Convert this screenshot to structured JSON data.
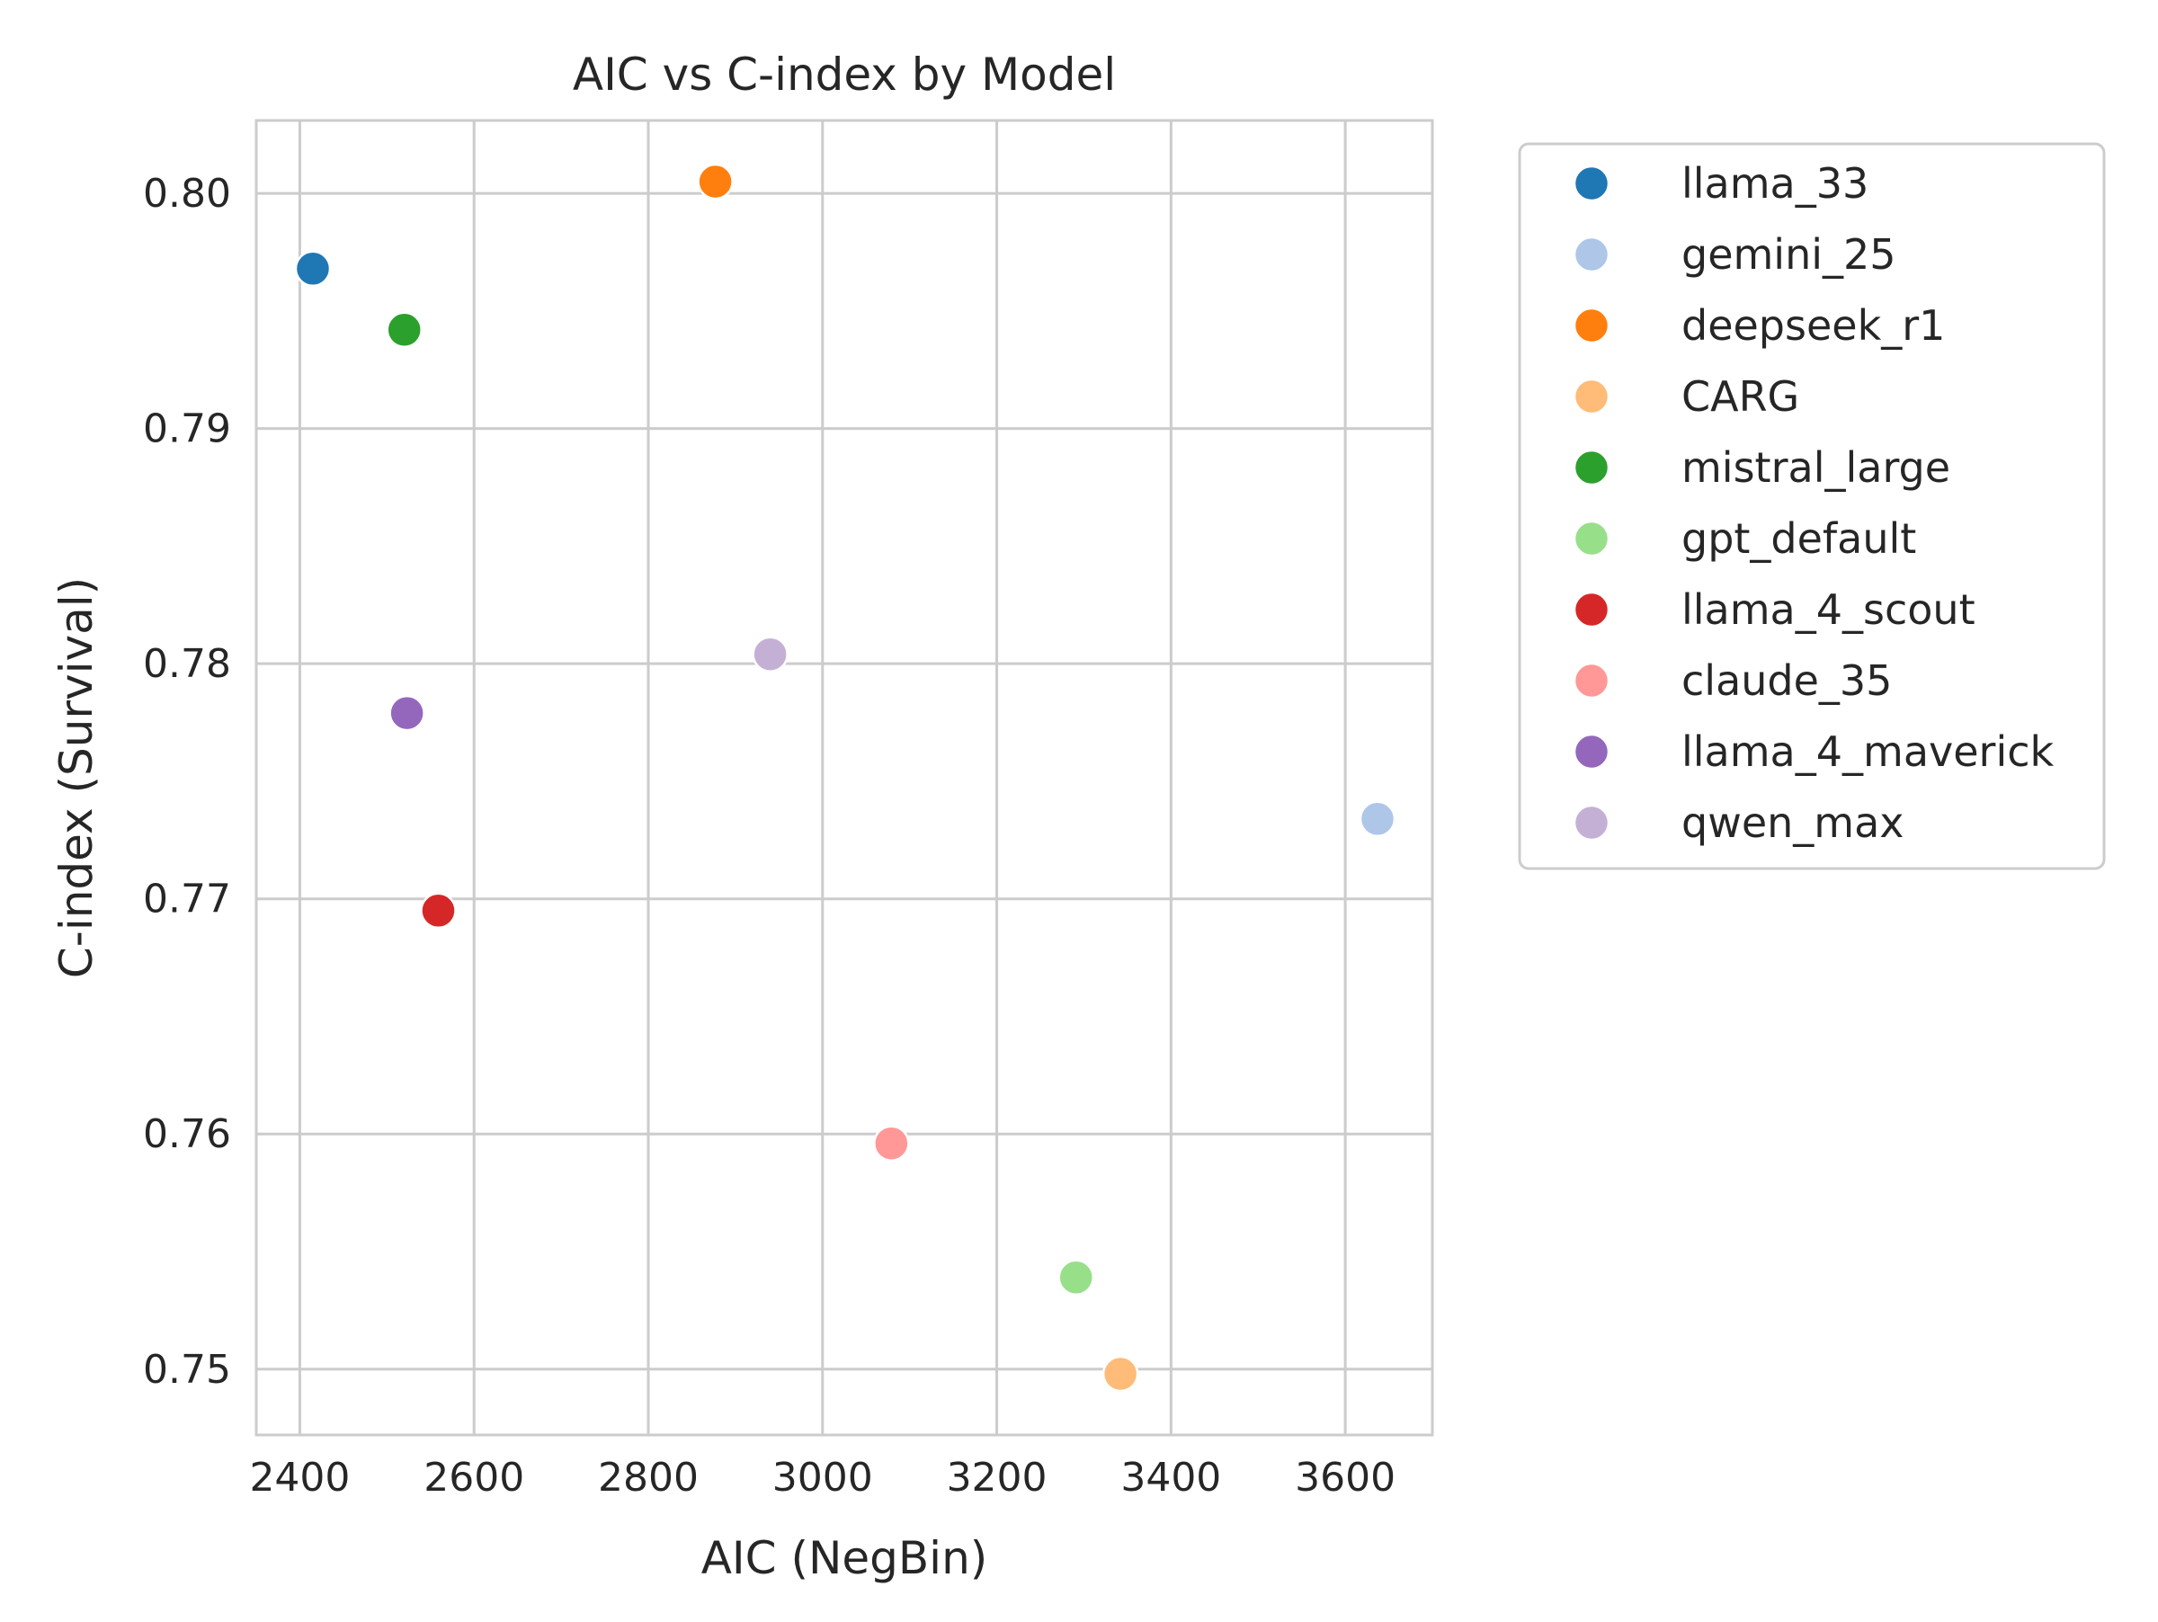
{
  "chart_data": {
    "type": "scatter",
    "title": "AIC vs C-index by Model",
    "xlabel": "AIC (NegBin)",
    "ylabel": "C-index (Survival)",
    "xlim": [
      2350,
      3700
    ],
    "ylim": [
      0.7472,
      0.8031
    ],
    "xticks": [
      2400,
      2600,
      2800,
      3000,
      3200,
      3400,
      3600
    ],
    "yticks": [
      0.75,
      0.76,
      0.77,
      0.78,
      0.79,
      0.8
    ],
    "ytick_labels": [
      "0.75",
      "0.76",
      "0.77",
      "0.78",
      "0.79",
      "0.80"
    ],
    "grid": true,
    "legend_position": "outside-right-top",
    "series": [
      {
        "name": "llama_33",
        "color": "#1f77b4",
        "x": 2415,
        "y": 0.7968
      },
      {
        "name": "gemini_25",
        "color": "#aec7e8",
        "x": 3637,
        "y": 0.7734
      },
      {
        "name": "deepseek_r1",
        "color": "#ff7f0e",
        "x": 2877,
        "y": 0.8005
      },
      {
        "name": "CARG",
        "color": "#ffbb78",
        "x": 3342,
        "y": 0.7498
      },
      {
        "name": "mistral_large",
        "color": "#2ca02c",
        "x": 2520,
        "y": 0.7942
      },
      {
        "name": "gpt_default",
        "color": "#98df8a",
        "x": 3291,
        "y": 0.7539
      },
      {
        "name": "llama_4_scout",
        "color": "#d62728",
        "x": 2559,
        "y": 0.7695
      },
      {
        "name": "claude_35",
        "color": "#ff9896",
        "x": 3079,
        "y": 0.7596
      },
      {
        "name": "llama_4_maverick",
        "color": "#9467bd",
        "x": 2523,
        "y": 0.7779
      },
      {
        "name": "qwen_max",
        "color": "#c5b0d5",
        "x": 2940,
        "y": 0.7804
      }
    ]
  }
}
